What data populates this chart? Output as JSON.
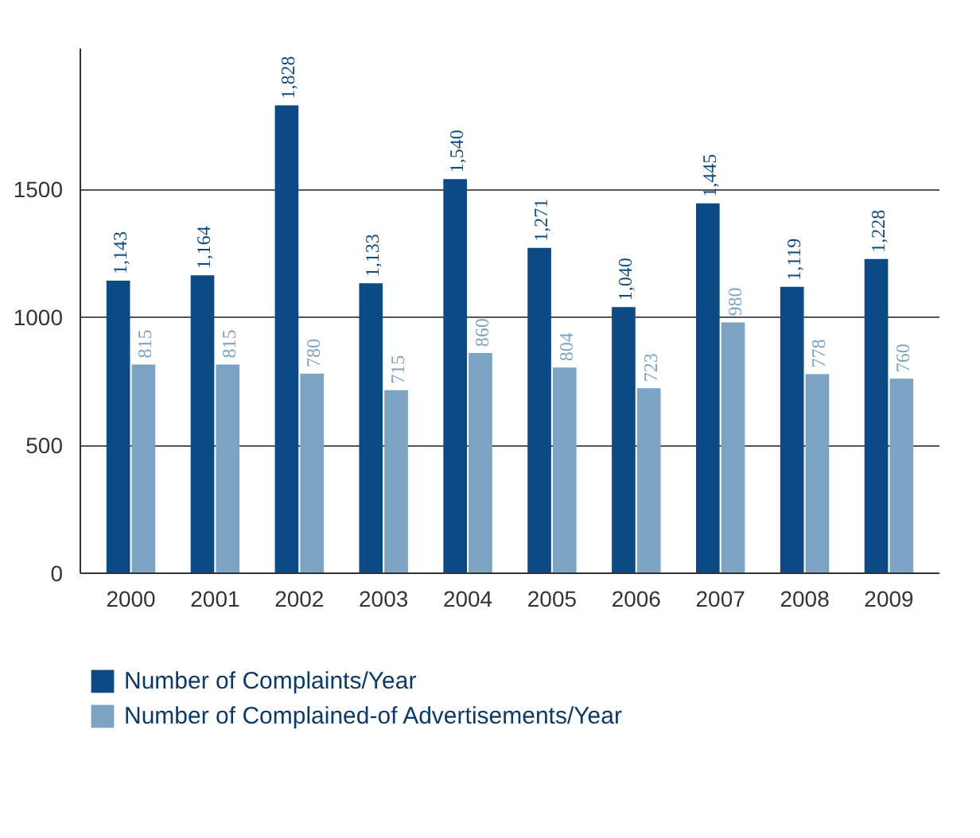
{
  "chart_data": {
    "type": "bar",
    "categories": [
      "2000",
      "2001",
      "2002",
      "2003",
      "2004",
      "2005",
      "2006",
      "2007",
      "2008",
      "2009"
    ],
    "series": [
      {
        "name": "Number of Complaints/Year",
        "color": "#0b4a85",
        "values": [
          1143,
          1164,
          1828,
          1133,
          1540,
          1271,
          1040,
          1445,
          1119,
          1228
        ],
        "value_labels": [
          "1,143",
          "1,164",
          "1,828",
          "1,133",
          "1,540",
          "1,271",
          "1,040",
          "1,445",
          "1,119",
          "1,228"
        ]
      },
      {
        "name": "Number of Complained-of Advertisements/Year",
        "color": "#7ba3c4",
        "values": [
          815,
          815,
          780,
          715,
          860,
          804,
          723,
          980,
          778,
          760
        ],
        "value_labels": [
          "815",
          "815",
          "780",
          "715",
          "860",
          "804",
          "723",
          "980",
          "778",
          "760"
        ]
      }
    ],
    "ylim": [
      0,
      2050
    ],
    "yticks": [
      0,
      500,
      1000,
      1500
    ],
    "grid": "y",
    "legend": "bottom"
  }
}
